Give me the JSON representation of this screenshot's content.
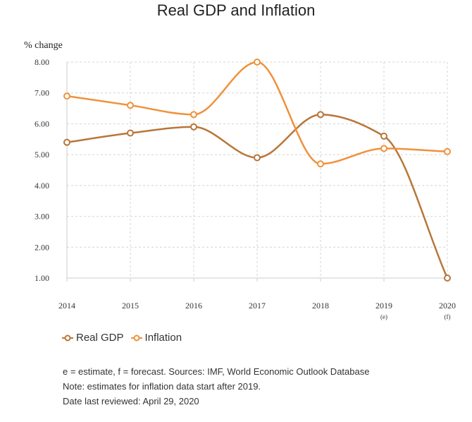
{
  "chart_data": {
    "type": "line",
    "title": "Real GDP and Inflation",
    "ylabel": "% change",
    "xlabel": "",
    "categories": [
      "2014",
      "2015",
      "2016",
      "2017",
      "2018",
      "2019",
      "2020"
    ],
    "category_notes": [
      "",
      "",
      "",
      "",
      "",
      "(e)",
      "(f)"
    ],
    "ylim": [
      1,
      8
    ],
    "yticks": [
      "1.00",
      "2.00",
      "3.00",
      "4.00",
      "5.00",
      "6.00",
      "7.00",
      "8.00"
    ],
    "grid": true,
    "legend_position": "bottom-left",
    "series": [
      {
        "name": "Real GDP",
        "color": "#b8763a",
        "values": [
          5.4,
          5.7,
          5.9,
          4.9,
          6.3,
          5.6,
          1.0
        ]
      },
      {
        "name": "Inflation",
        "color": "#f0913a",
        "values": [
          6.9,
          6.6,
          6.3,
          8.0,
          4.7,
          5.2,
          5.1
        ]
      }
    ]
  },
  "notes": [
    "e = estimate, f = forecast. Sources: IMF, World Economic Outlook Database",
    "Note: estimates for inflation data start after 2019.",
    "Date last reviewed: April 29, 2020"
  ]
}
